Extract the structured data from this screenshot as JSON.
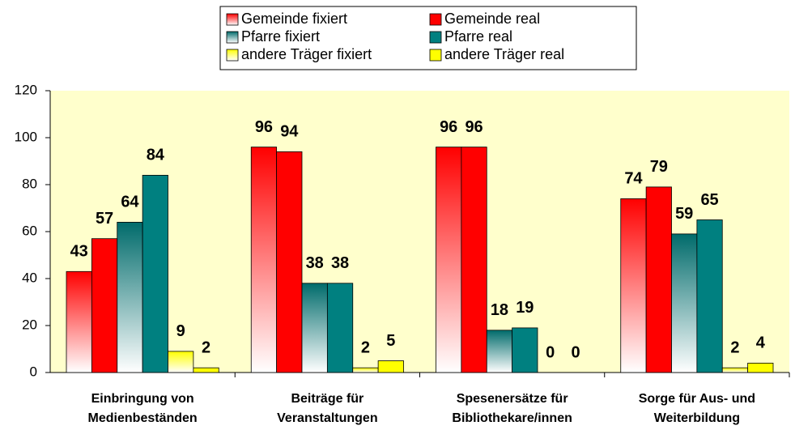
{
  "chart_data": {
    "type": "bar",
    "categories": [
      [
        "Einbringung von",
        "Medienbeständen"
      ],
      [
        "Beiträge für",
        "Veranstaltungen"
      ],
      [
        "Spesenersätze für",
        "Bibliothekare/innen"
      ],
      [
        "Sorge für Aus- und",
        "Weiterbildung"
      ]
    ],
    "series": [
      {
        "name": "Gemeinde fixiert",
        "color": "#ff0000",
        "fill": "gradient",
        "values": [
          43,
          96,
          96,
          74
        ]
      },
      {
        "name": "Gemeinde real",
        "color": "#ff0000",
        "fill": "solid",
        "values": [
          57,
          94,
          96,
          79
        ]
      },
      {
        "name": "Pfarre fixiert",
        "color": "#006b6b",
        "fill": "gradient",
        "values": [
          64,
          38,
          18,
          59
        ]
      },
      {
        "name": "Pfarre real",
        "color": "#008080",
        "fill": "solid",
        "values": [
          84,
          38,
          19,
          65
        ]
      },
      {
        "name": "andere Träger fixiert",
        "color": "#ffff00",
        "fill": "gradient",
        "values": [
          9,
          2,
          0,
          2
        ]
      },
      {
        "name": "andere Träger real",
        "color": "#ffff00",
        "fill": "solid",
        "values": [
          2,
          5,
          0,
          4
        ]
      }
    ],
    "ylim": [
      0,
      120
    ],
    "yticks": [
      0,
      20,
      40,
      60,
      80,
      100,
      120
    ],
    "plot_background": "#ffffcc",
    "legend": "top"
  }
}
